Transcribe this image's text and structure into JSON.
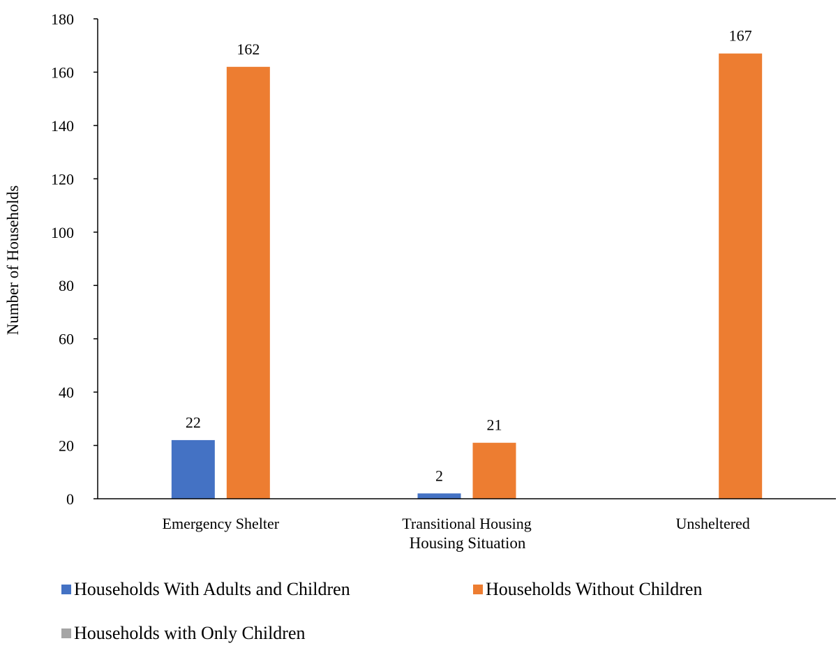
{
  "chart_data": {
    "type": "bar",
    "title": "",
    "xlabel": "Housing Situation",
    "ylabel": "Number of Households",
    "categories": [
      "Emergency Shelter",
      "Transitional Housing",
      "Unsheltered"
    ],
    "ylim": [
      0,
      180
    ],
    "yticks": [
      0,
      20,
      40,
      60,
      80,
      100,
      120,
      140,
      160,
      180
    ],
    "grid": false,
    "legend_position": "bottom",
    "series": [
      {
        "name": "Households With Adults and Children",
        "color": "#4472C4",
        "values": [
          22,
          2,
          0
        ],
        "labels": [
          "22",
          "2",
          ""
        ]
      },
      {
        "name": "Households Without Children",
        "color": "#ED7D31",
        "values": [
          162,
          21,
          167
        ],
        "labels": [
          "162",
          "21",
          "167"
        ]
      },
      {
        "name": "Households with Only Children",
        "color": "#A5A5A5",
        "values": [
          0,
          0,
          0
        ],
        "labels": [
          "",
          "",
          ""
        ]
      }
    ]
  }
}
